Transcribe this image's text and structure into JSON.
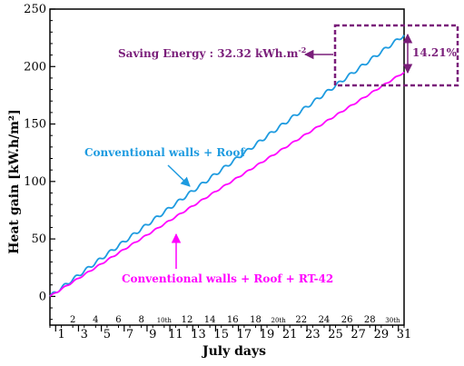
{
  "chart_data": {
    "type": "line",
    "xlabel": "July days",
    "ylabel": "Heat gain [kW.h/m²]",
    "xlim": [
      0,
      31
    ],
    "ylim": [
      -25,
      250
    ],
    "x_ticks_bottom": [
      "1",
      "3",
      "5",
      "7",
      "9",
      "11",
      "13",
      "15",
      "17",
      "19",
      "21",
      "23",
      "25",
      "27",
      "29",
      "31"
    ],
    "x_ticks_top": [
      "2",
      "4",
      "6",
      "8",
      "10th",
      "12",
      "14",
      "16",
      "18",
      "20th",
      "22",
      "24",
      "26",
      "28",
      "30th"
    ],
    "y_ticks": [
      "0",
      "50",
      "100",
      "150",
      "200",
      "250"
    ],
    "grid": false,
    "series": [
      {
        "name": "Conventional walls + Roof",
        "color": "#1e9be0",
        "x": [
          0,
          31
        ],
        "values": [
          0,
          227.4
        ],
        "daily_ripple": 1.5
      },
      {
        "name": "Conventional walls + Roof + RT-42",
        "color": "#ff00ff",
        "x": [
          0,
          31
        ],
        "values": [
          0,
          195.1
        ],
        "daily_ripple": 0.6
      }
    ],
    "annotations": {
      "saving_prefix": "Saving Energy : 32.32 kWh.m",
      "saving_sup": "-2",
      "percent": "14.21%",
      "annotation_color": "#7a1e7a"
    }
  }
}
